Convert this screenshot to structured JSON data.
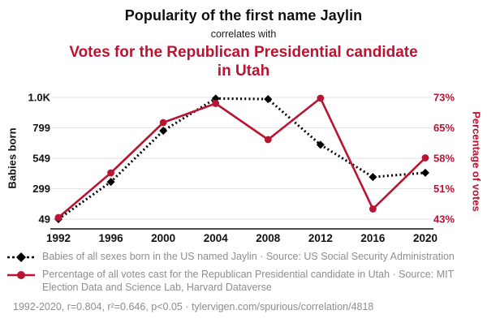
{
  "header": {
    "title": "Popularity of the first name Jaylin",
    "connector": "correlates with",
    "title2": "Votes for the Republican Presidential candidate in Utah"
  },
  "colors": {
    "accent": "#b91432",
    "black": "#000000",
    "muted_text": "#8e8e8e"
  },
  "chart_data": {
    "type": "line",
    "title": "Popularity of the first name Jaylin correlates with Votes for the Republican Presidential candidate in Utah",
    "x": [
      1992,
      1996,
      2000,
      2004,
      2008,
      2012,
      2016,
      2020
    ],
    "x_ticks": [
      "1992",
      "1996",
      "2000",
      "2004",
      "2008",
      "2012",
      "2016",
      "2020"
    ],
    "grid": true,
    "left_axis": {
      "label": "Babies born",
      "ticks": [
        "49",
        "299",
        "549",
        "799",
        "1.0K"
      ],
      "range": [
        49,
        1049
      ]
    },
    "right_axis": {
      "label": "Percentage of votes",
      "ticks": [
        "43%",
        "51%",
        "58%",
        "65%",
        "73%"
      ],
      "range": [
        43,
        73
      ]
    },
    "series": [
      {
        "id": "babies",
        "name": "Babies of all sexes born in the US named Jaylin",
        "axis": "left",
        "color": "#000000",
        "style": "dashed",
        "marker": "diamond",
        "values": [
          49,
          355,
          775,
          1040,
          1035,
          660,
          395,
          430
        ]
      },
      {
        "id": "votes",
        "name": "Percentage of all votes cast for the Republican Presidential candidate in Utah",
        "axis": "right",
        "color": "#b91432",
        "style": "solid",
        "marker": "circle",
        "values": [
          43.4,
          54.4,
          66.8,
          71.5,
          62.6,
          72.8,
          45.5,
          58.1
        ]
      }
    ]
  },
  "legend": [
    {
      "text": "Babies of all sexes born in the US named Jaylin · Source: US Social Security Administration"
    },
    {
      "text": "Percentage of all votes cast for the Republican Presidential candidate in Utah · Source: MIT Election Data and Science Lab, Harvard Dataverse"
    }
  ],
  "footer": "1992-2020, r=0.804, r²=0.646, p<0.05 · tylervigen.com/spurious/correlation/4818"
}
